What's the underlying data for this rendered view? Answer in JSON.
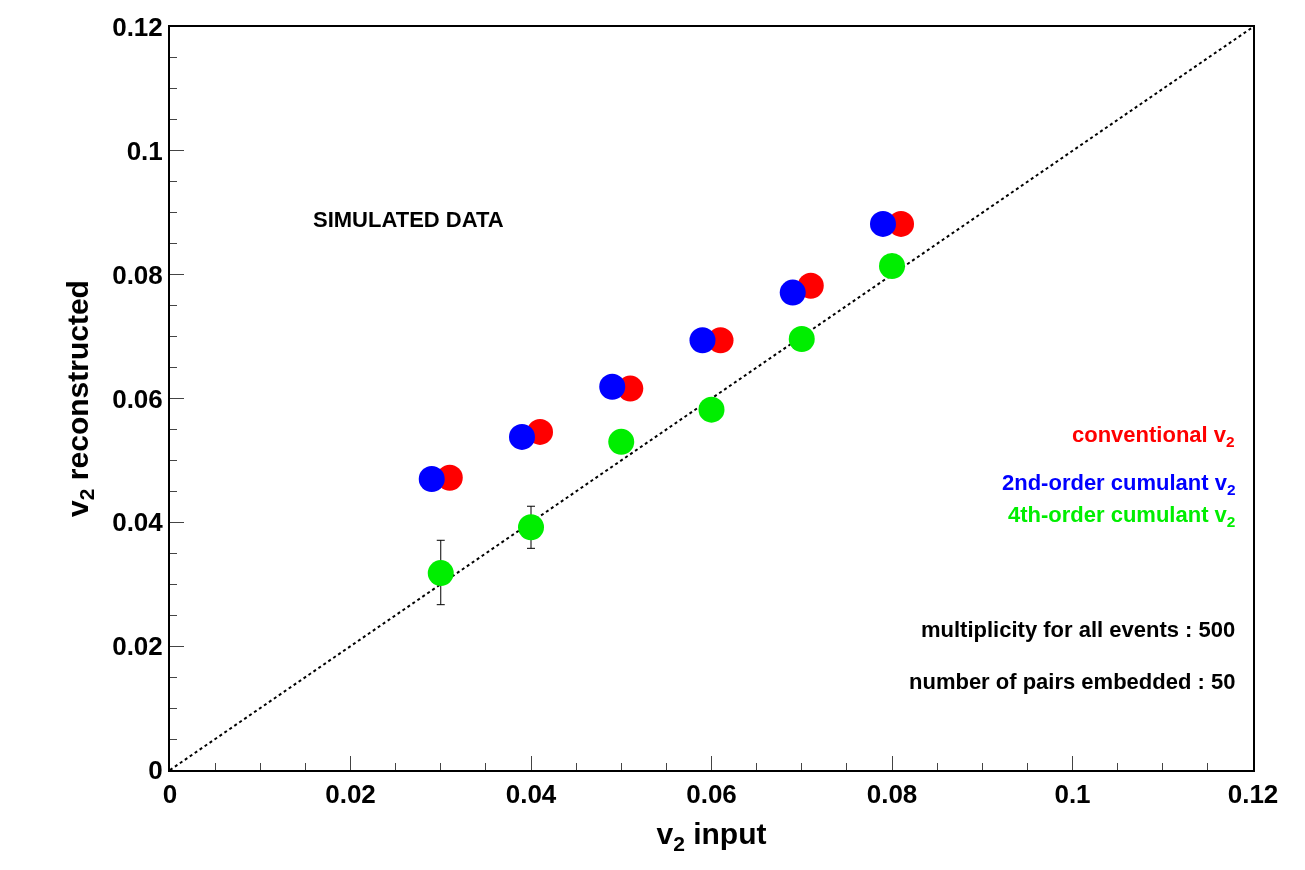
{
  "chart_data": {
    "type": "scatter",
    "xlabel": "v$_{2}$ input",
    "ylabel": "v$_{2}$ reconstructed",
    "xlim": [
      0,
      0.12
    ],
    "ylim": [
      0,
      0.12
    ],
    "xticks": [
      0,
      0.02,
      0.04,
      0.06,
      0.08,
      0.1,
      0.12
    ],
    "yticks": [
      0,
      0.02,
      0.04,
      0.06,
      0.08,
      0.1,
      0.12
    ],
    "legend": false,
    "marker": "circle",
    "series": [
      {
        "type": "line",
        "line_style": "dotted",
        "marker": "none",
        "color": "#000000",
        "x": [
          0,
          0.12
        ],
        "values": [
          0,
          0.12
        ]
      },
      {
        "name": "conventional v$_{2}$",
        "color": "#ff0000",
        "x": [
          0.031,
          0.041,
          0.051,
          0.061,
          0.071,
          0.081
        ],
        "values": [
          0.0472,
          0.0546,
          0.0616,
          0.0694,
          0.0782,
          0.0882
        ]
      },
      {
        "name": "2nd-order cumulant v$_{2}$",
        "color": "#0000ff",
        "x": [
          0.029,
          0.039,
          0.049,
          0.059,
          0.069,
          0.079
        ],
        "values": [
          0.047,
          0.0538,
          0.0619,
          0.0694,
          0.0771,
          0.0882
        ]
      },
      {
        "name": "4th-order cumulant v$_{2}$",
        "color": "#00ee00",
        "x": [
          0.03,
          0.04,
          0.05,
          0.06,
          0.07,
          0.08
        ],
        "values": [
          0.0318,
          0.0392,
          0.053,
          0.0582,
          0.0696,
          0.0814
        ],
        "errors": [
          [
            0.0267,
            0.0371
          ],
          [
            0.0358,
            0.0426
          ],
          null,
          null,
          null,
          null
        ]
      }
    ],
    "annotations": [
      "SIMULATED DATA",
      "multiplicity for all events : 500",
      "number of pairs embedded : 50"
    ]
  }
}
